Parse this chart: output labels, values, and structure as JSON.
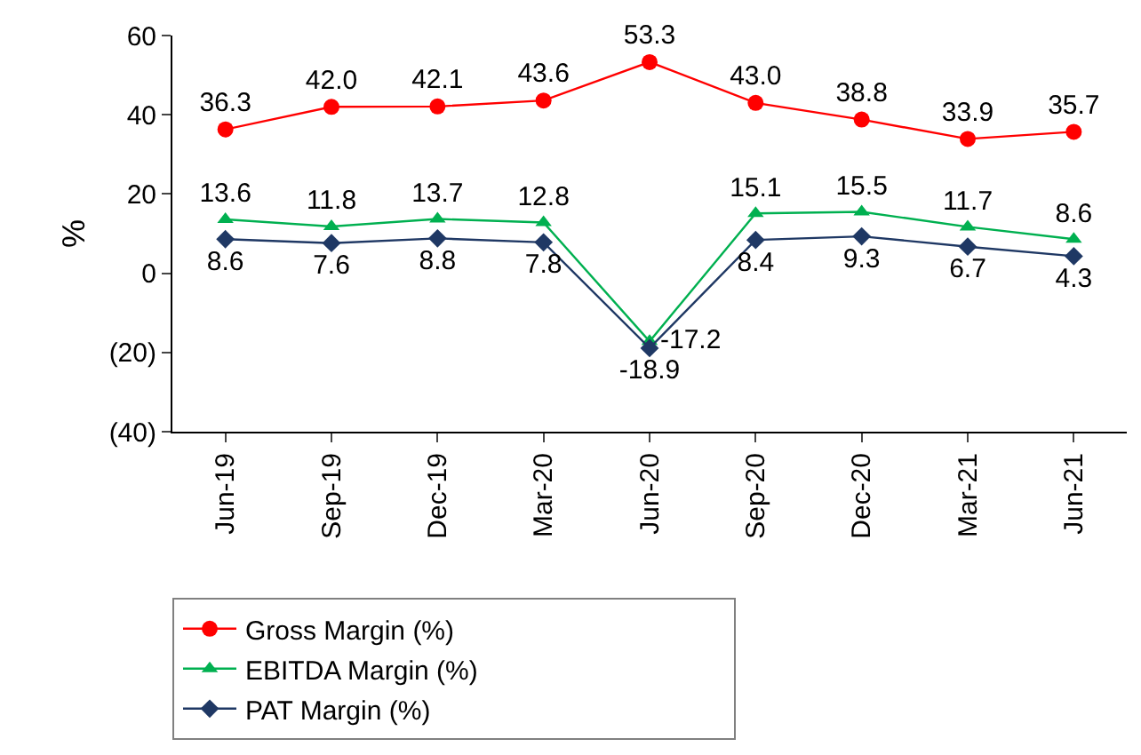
{
  "chart_data": {
    "type": "line",
    "ylabel": "%",
    "categories": [
      "Jun-19",
      "Sep-19",
      "Dec-19",
      "Mar-20",
      "Jun-20",
      "Sep-20",
      "Dec-20",
      "Mar-21",
      "Jun-21"
    ],
    "series": [
      {
        "name": "Gross Margin (%)",
        "color": "#ff0000",
        "marker": "circle",
        "values": [
          36.3,
          42.0,
          42.1,
          43.6,
          53.3,
          43.0,
          38.8,
          33.9,
          35.7
        ],
        "value_labels": [
          "36.3",
          "42.0",
          "42.1",
          "43.6",
          "53.3",
          "43.0",
          "38.8",
          "33.9",
          "35.7"
        ]
      },
      {
        "name": "EBITDA Margin (%)",
        "color": "#00b050",
        "marker": "triangle",
        "values": [
          13.6,
          11.8,
          13.7,
          12.8,
          -17.2,
          15.1,
          15.5,
          11.7,
          8.6
        ],
        "value_labels": [
          "13.6",
          "11.8",
          "13.7",
          "12.8",
          "-17.2",
          "15.1",
          "15.5",
          "11.7",
          "8.6"
        ]
      },
      {
        "name": "PAT Margin (%)",
        "color": "#1f3864",
        "marker": "diamond",
        "values": [
          8.6,
          7.6,
          8.8,
          7.8,
          -18.9,
          8.4,
          9.3,
          6.7,
          4.3
        ],
        "value_labels": [
          "8.6",
          "7.6",
          "8.8",
          "7.8",
          "-18.9",
          "8.4",
          "9.3",
          "6.7",
          "4.3"
        ]
      }
    ],
    "ylim": [
      -40,
      60
    ],
    "yticks": [
      {
        "value": -40,
        "label": "(40)"
      },
      {
        "value": -20,
        "label": "(20)"
      },
      0,
      20,
      40,
      60
    ],
    "legend": "bottom"
  }
}
